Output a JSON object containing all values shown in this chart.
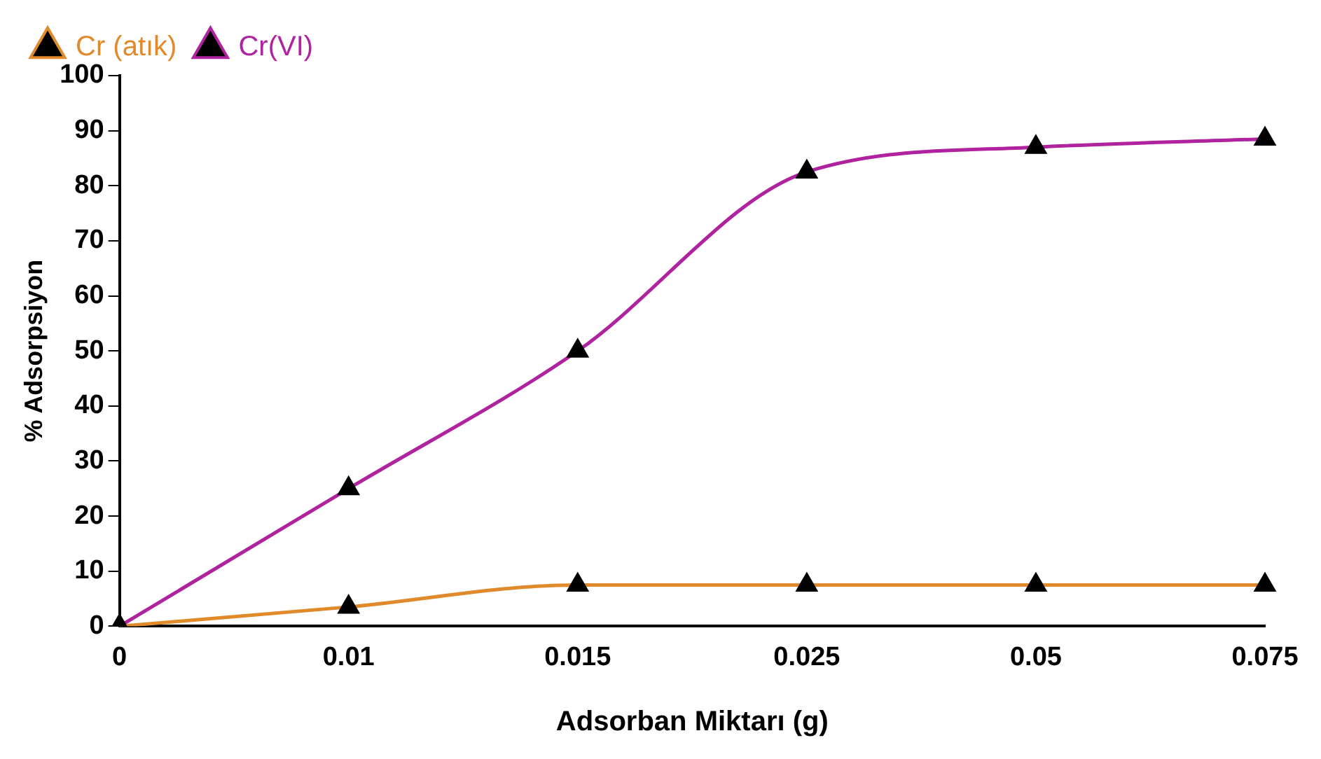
{
  "chart_data": {
    "type": "line",
    "xlabel": "Adsorban Miktarı (g)",
    "ylabel": "% Adsorpsiyon",
    "categories": [
      "0",
      "0.01",
      "0.015",
      "0.025",
      "0.05",
      "0.075"
    ],
    "series": [
      {
        "name": "Cr (atık)",
        "color": "#e08a2c",
        "values": [
          0,
          3.5,
          7.5,
          7.5,
          7.5,
          7.5
        ]
      },
      {
        "name": "Cr(VI)",
        "color": "#b0239e",
        "values": [
          0,
          25,
          50,
          82.5,
          87,
          88.5
        ]
      }
    ],
    "ylim": [
      0,
      100
    ],
    "yticks": [
      0,
      10,
      20,
      30,
      40,
      50,
      60,
      70,
      80,
      90,
      100
    ],
    "grid": false,
    "legend": "top left",
    "marker": "triangle",
    "line_style": "solid"
  }
}
